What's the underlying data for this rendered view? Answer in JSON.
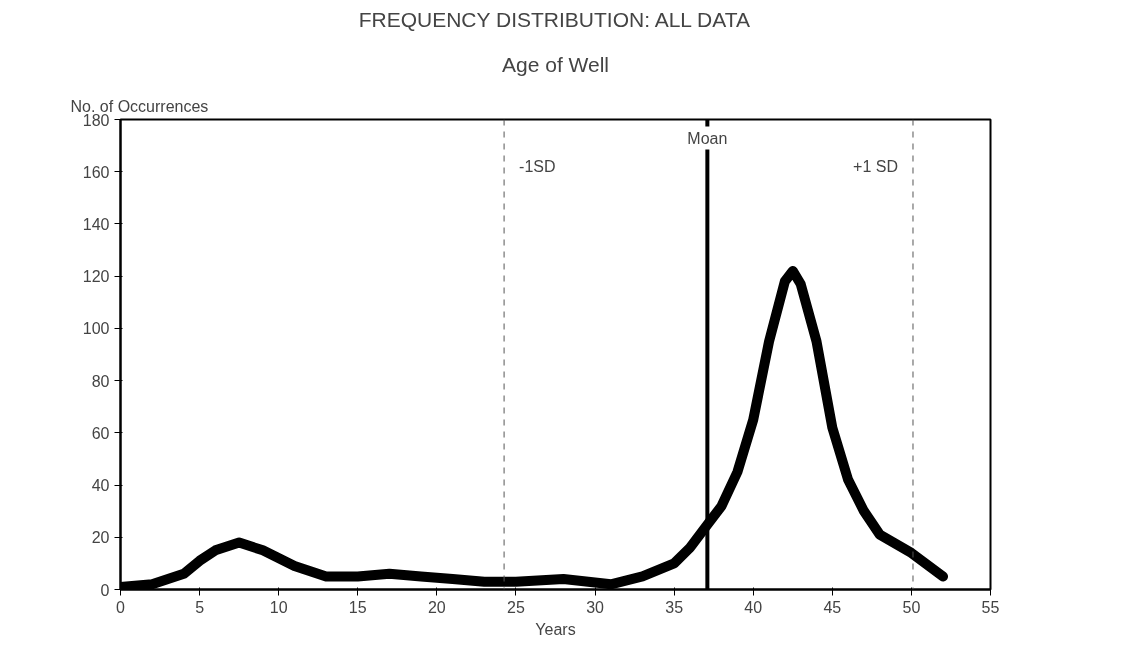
{
  "chart_data": {
    "type": "line",
    "title": "FREQUENCY DISTRIBUTION: ALL DATA",
    "subtitle": "Age of Well",
    "xlabel": "Years",
    "ylabel": "No. of Occurrences",
    "xlim": [
      0,
      55
    ],
    "xticks": [
      0,
      5,
      10,
      15,
      20,
      25,
      30,
      35,
      40,
      45,
      50,
      55
    ],
    "ylim": [
      0,
      180
    ],
    "yticks": [
      0,
      20,
      40,
      60,
      80,
      100,
      120,
      140,
      160,
      180
    ],
    "grid": false,
    "marker": "none",
    "line_style": "solid",
    "series": [
      {
        "color": "#000000",
        "x": [
          0,
          2,
          4,
          5,
          6,
          7.5,
          9,
          11,
          13,
          15,
          17,
          19,
          21,
          23,
          25,
          28,
          31,
          33,
          35,
          36,
          37,
          38,
          39,
          40,
          41,
          42,
          42.5,
          43,
          44,
          45,
          46,
          47,
          48,
          50,
          52
        ],
        "values": [
          1,
          2,
          6,
          11,
          15,
          18,
          15,
          9,
          5,
          5,
          6,
          5,
          4,
          3,
          3,
          4,
          2,
          5,
          10,
          16,
          24,
          32,
          45,
          65,
          95,
          118,
          122,
          117,
          95,
          62,
          42,
          30,
          21,
          14,
          5
        ]
      }
    ],
    "ref_lines": [
      {
        "axis": "x",
        "value": 24.25,
        "label": "-1SD",
        "line_style": "dashed",
        "color": "#555555"
      },
      {
        "axis": "x",
        "value": 37.1,
        "label": "Moan",
        "line_style": "solid",
        "color": "#000000"
      },
      {
        "axis": "x",
        "value": 50.1,
        "label": "+1 SD",
        "line_style": "dashed",
        "color": "#555555"
      }
    ]
  }
}
